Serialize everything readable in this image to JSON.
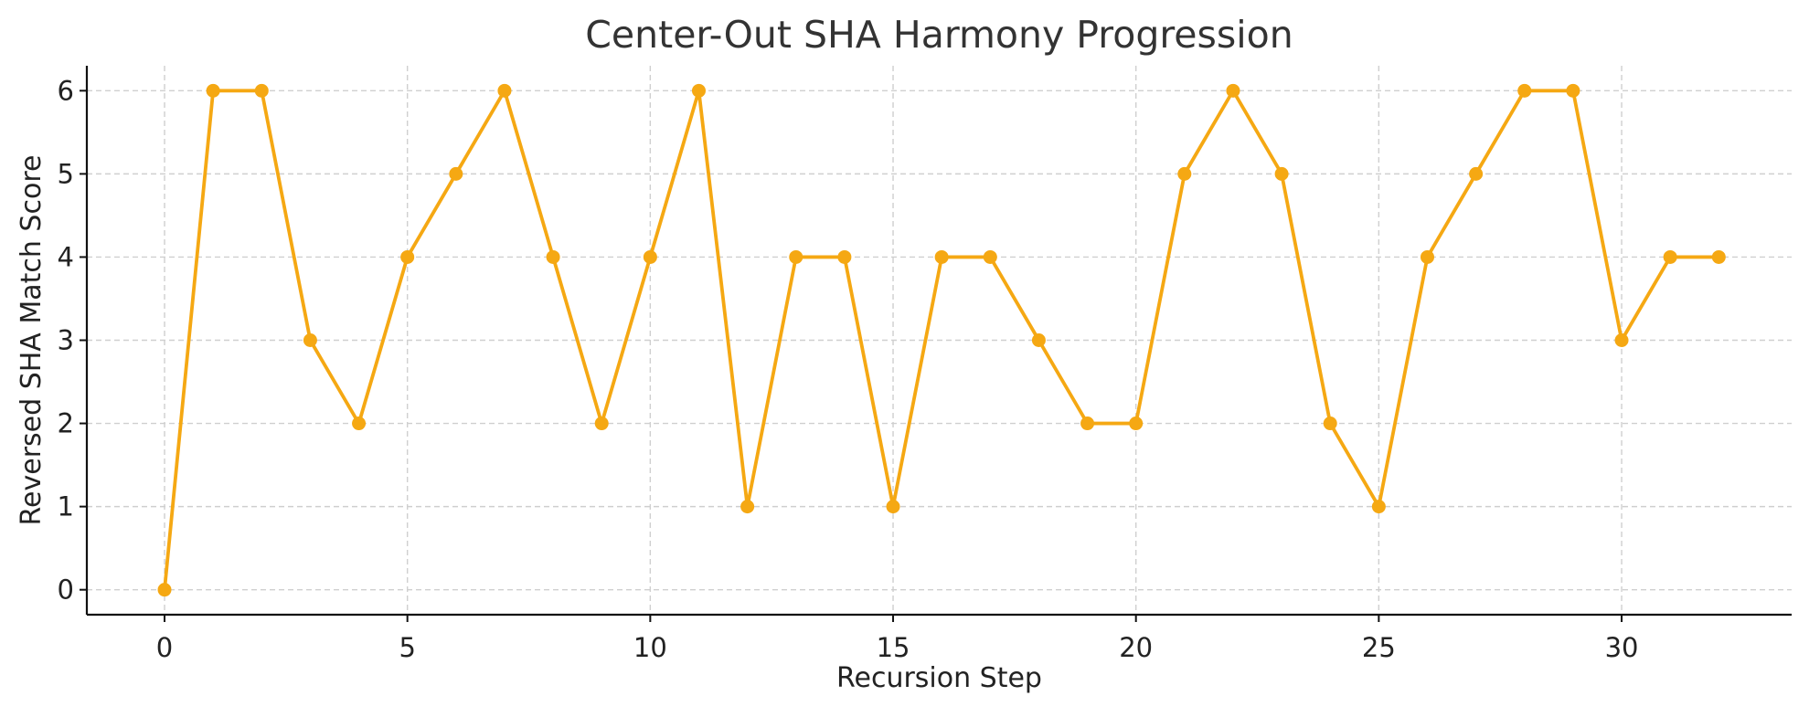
{
  "chart_data": {
    "type": "line",
    "title": "Center-Out SHA Harmony Progression",
    "xlabel": "Recursion Step",
    "ylabel": "Reversed SHA Match Score",
    "xlim": [
      -1.6,
      33.5
    ],
    "ylim": [
      -0.3,
      6.3
    ],
    "xticks": [
      0,
      5,
      10,
      15,
      20,
      25,
      30
    ],
    "yticks": [
      0,
      1,
      2,
      3,
      4,
      5,
      6
    ],
    "grid": true,
    "x": [
      0,
      1,
      2,
      3,
      4,
      5,
      6,
      7,
      8,
      9,
      10,
      11,
      12,
      13,
      14,
      15,
      16,
      17,
      18,
      19,
      20,
      21,
      22,
      23,
      24,
      25,
      26,
      27,
      28,
      29,
      30,
      31,
      32
    ],
    "series": [
      {
        "color": "#f5a813",
        "marker": "circle",
        "values": [
          0,
          6,
          6,
          3,
          2,
          4,
          5,
          6,
          4,
          2,
          4,
          6,
          1,
          4,
          4,
          1,
          4,
          4,
          3,
          2,
          2,
          5,
          6,
          5,
          2,
          1,
          4,
          5,
          6,
          6,
          3,
          4,
          4
        ]
      }
    ]
  }
}
